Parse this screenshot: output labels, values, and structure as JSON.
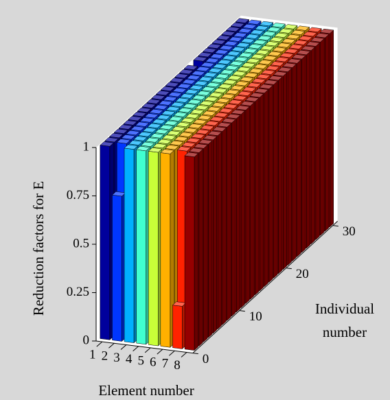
{
  "chart_data": {
    "type": "bar3",
    "xlabel": "Element number",
    "ylabel": [
      "Individual",
      "number"
    ],
    "zlabel": "Reduction factors for E",
    "xticks": [
      1,
      2,
      3,
      4,
      5,
      6,
      7,
      8
    ],
    "yticks": [
      0,
      10,
      20,
      30
    ],
    "zticks": [
      0,
      0.25,
      0.5,
      0.75,
      1
    ],
    "xlim": [
      0.5,
      8.5
    ],
    "ylim": [
      0,
      31
    ],
    "zlim": [
      0,
      1
    ],
    "y": [
      1,
      2,
      3,
      4,
      5,
      6,
      7,
      8,
      9,
      10,
      11,
      12,
      13,
      14,
      15,
      16,
      17,
      18,
      19,
      20,
      21,
      22,
      23,
      24,
      25,
      26,
      27,
      28,
      29,
      30
    ],
    "series": [
      {
        "color": "#00009c",
        "values": [
          1,
          1,
          1,
          1,
          1,
          1,
          1,
          1,
          1,
          1,
          1,
          1,
          1,
          1,
          1,
          1,
          1,
          1,
          1,
          0.8,
          1,
          1,
          1,
          1,
          1,
          1,
          1,
          1,
          1,
          1
        ]
      },
      {
        "color": "#0036ff",
        "values": [
          0.75,
          1,
          1,
          1,
          1,
          1,
          1,
          1,
          1,
          1,
          1,
          1,
          1,
          1,
          1,
          1,
          1,
          1,
          1,
          1,
          1,
          1,
          1,
          1,
          1,
          1,
          1,
          1,
          1,
          1
        ]
      },
      {
        "color": "#00b0ff",
        "values": [
          1,
          1,
          1,
          1,
          1,
          1,
          1,
          1,
          1,
          1,
          1,
          1,
          1,
          1,
          1,
          1,
          1,
          1,
          1,
          1,
          1,
          1,
          1,
          1,
          1,
          1,
          1,
          1,
          1,
          1
        ]
      },
      {
        "color": "#40ffd0",
        "values": [
          1,
          1,
          1,
          1,
          1,
          1,
          1,
          1,
          1,
          1,
          1,
          1,
          1,
          1,
          1,
          1,
          1,
          1,
          1,
          1,
          1,
          1,
          1,
          1,
          1,
          1,
          1,
          1,
          1,
          1
        ]
      },
      {
        "color": "#c8ff38",
        "values": [
          1,
          1,
          1,
          1,
          1,
          1,
          1,
          1,
          1,
          1,
          1,
          1,
          1,
          1,
          1,
          1,
          1,
          1,
          1,
          1,
          1,
          1,
          1,
          1,
          1,
          1,
          1,
          1,
          1,
          1
        ]
      },
      {
        "color": "#ffb000",
        "values": [
          1,
          1,
          1,
          1,
          1,
          1,
          1,
          1,
          1,
          1,
          1,
          1,
          1,
          1,
          1,
          1,
          1,
          1,
          1,
          1,
          1,
          1,
          1,
          1,
          1,
          1,
          1,
          1,
          1,
          1
        ]
      },
      {
        "color": "#ff2200",
        "values": [
          0.22,
          1,
          1,
          1,
          1,
          1,
          1,
          1,
          1,
          1,
          1,
          1,
          1,
          1,
          1,
          1,
          1,
          1,
          1,
          1,
          1,
          1,
          1,
          1,
          1,
          1,
          1,
          1,
          1,
          1
        ]
      },
      {
        "color": "#950000",
        "values": [
          1,
          1,
          1,
          1,
          1,
          1,
          1,
          1,
          1,
          1,
          1,
          1,
          1,
          1,
          1,
          1,
          1,
          1,
          1,
          1,
          1,
          1,
          1,
          1,
          1,
          1,
          1,
          1,
          1,
          1
        ]
      }
    ]
  }
}
